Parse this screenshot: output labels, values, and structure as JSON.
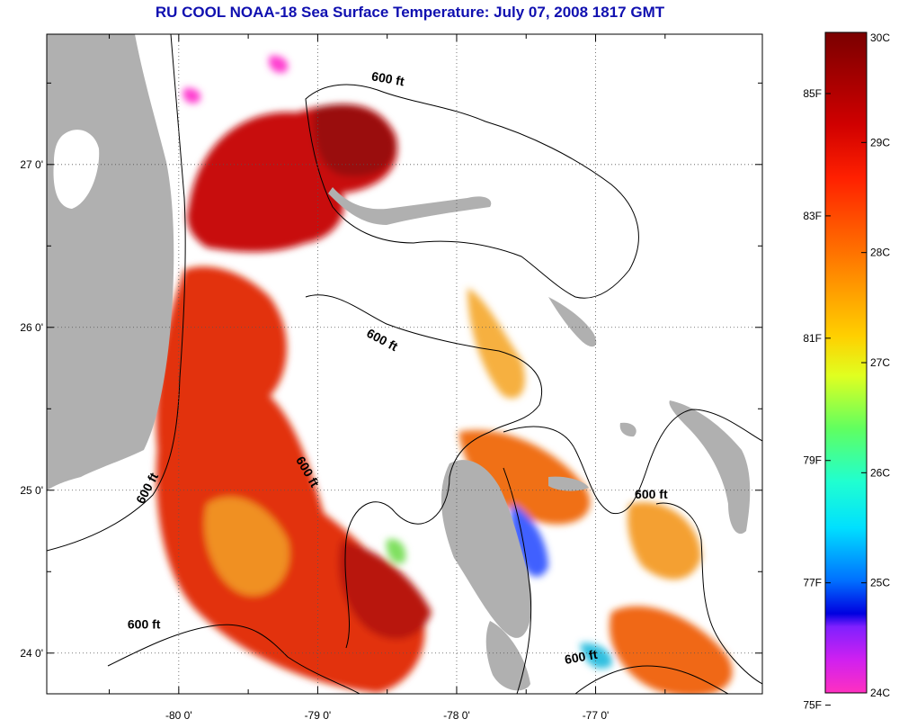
{
  "title": "RU COOL  NOAA-18  Sea Surface Temperature:  July 07, 2008 1817 GMT",
  "map": {
    "lon_range": [
      -80.95,
      -75.8
    ],
    "lat_range": [
      23.75,
      27.8
    ],
    "x_ticks": [
      {
        "value": -80,
        "label": "-80 0'"
      },
      {
        "value": -79,
        "label": "-79 0'"
      },
      {
        "value": -78,
        "label": "-78 0'"
      },
      {
        "value": -77,
        "label": "-77 0'"
      }
    ],
    "y_ticks": [
      {
        "value": 27,
        "label": "27 0'"
      },
      {
        "value": 26,
        "label": "26 0'"
      },
      {
        "value": 25,
        "label": "25 0'"
      },
      {
        "value": 24,
        "label": "24 0'"
      }
    ],
    "grid": "dotted",
    "contour_labels": [
      {
        "text": "600 ft",
        "lon": -78.5,
        "lat": 27.5,
        "rotate": 10
      },
      {
        "text": "600 ft",
        "lon": -78.55,
        "lat": 25.9,
        "rotate": 28
      },
      {
        "text": "600 ft",
        "lon": -79.1,
        "lat": 25.1,
        "rotate": 60
      },
      {
        "text": "600 ft",
        "lon": -80.2,
        "lat": 25.0,
        "rotate": -62
      },
      {
        "text": "600 ft",
        "lon": -80.25,
        "lat": 24.15,
        "rotate": 0
      },
      {
        "text": "600 ft",
        "lon": -77.1,
        "lat": 23.95,
        "rotate": -10
      },
      {
        "text": "600 ft",
        "lon": -76.6,
        "lat": 24.95,
        "rotate": 0
      }
    ]
  },
  "colorbar": {
    "min_c": 24,
    "max_c": 30,
    "celsius_ticks": [
      {
        "value": 30,
        "label": "30C"
      },
      {
        "value": 29,
        "label": "29C"
      },
      {
        "value": 28,
        "label": "28C"
      },
      {
        "value": 27,
        "label": "27C"
      },
      {
        "value": 26,
        "label": "26C"
      },
      {
        "value": 25,
        "label": "25C"
      },
      {
        "value": 24,
        "label": "24C"
      }
    ],
    "fahrenheit_ticks": [
      {
        "value": 85,
        "label": "85F"
      },
      {
        "value": 83,
        "label": "83F"
      },
      {
        "value": 81,
        "label": "81F"
      },
      {
        "value": 79,
        "label": "79F"
      },
      {
        "value": 77,
        "label": "77F"
      },
      {
        "value": 75,
        "label": "75F"
      }
    ]
  },
  "colors": {
    "land": "#b0b0b0",
    "title": "#1010b0",
    "warm_hot": "#a01010",
    "warm": "#e02010",
    "mid": "#f06010",
    "cool_yellow": "#f0c020"
  }
}
